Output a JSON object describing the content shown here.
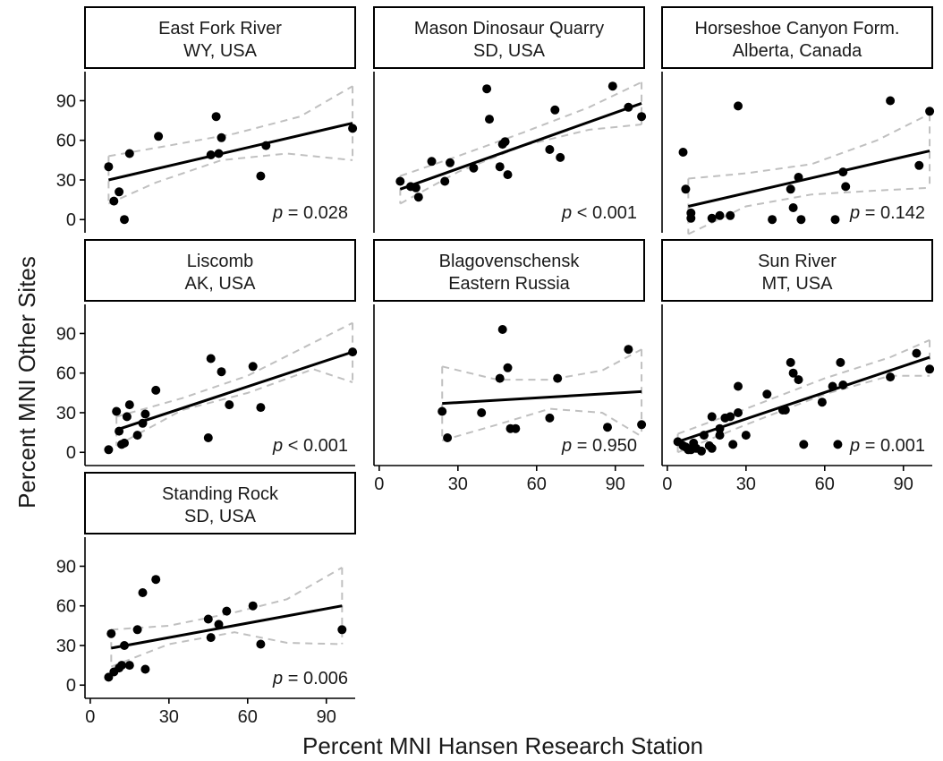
{
  "chart_data": {
    "type": "scatter",
    "xlabel": "Percent MNI Hansen Research Station",
    "ylabel": "Percent MNI Other Sites",
    "xticks": [
      0,
      30,
      60,
      90
    ],
    "yticks": [
      0,
      30,
      60,
      90
    ],
    "xlim": [
      -2,
      101
    ],
    "ylim": [
      -10,
      112
    ],
    "panels": [
      {
        "id": "east-fork",
        "title": [
          "East Fork River",
          "WY, USA"
        ],
        "p_label": "p",
        "p_op": "=",
        "p_value": "0.028",
        "points": [
          [
            7,
            40
          ],
          [
            9,
            14
          ],
          [
            11,
            21
          ],
          [
            13,
            0
          ],
          [
            15,
            50
          ],
          [
            26,
            63
          ],
          [
            46,
            49
          ],
          [
            48,
            78
          ],
          [
            49,
            50
          ],
          [
            50,
            62
          ],
          [
            65,
            33
          ],
          [
            67,
            56
          ],
          [
            100,
            69
          ]
        ],
        "fit": [
          [
            7,
            30
          ],
          [
            100,
            73
          ]
        ],
        "ci_upper": [
          [
            7,
            48
          ],
          [
            30,
            56
          ],
          [
            55,
            65
          ],
          [
            80,
            78
          ],
          [
            100,
            101
          ]
        ],
        "ci_lower": [
          [
            7,
            12
          ],
          [
            25,
            28
          ],
          [
            50,
            45
          ],
          [
            75,
            50
          ],
          [
            100,
            45
          ]
        ]
      },
      {
        "id": "mason",
        "title": [
          "Mason Dinosaur Quarry",
          "SD, USA"
        ],
        "p_label": "p",
        "p_op": "<",
        "p_value": "0.001",
        "points": [
          [
            8,
            29
          ],
          [
            12,
            25
          ],
          [
            14,
            24
          ],
          [
            15,
            17
          ],
          [
            20,
            44
          ],
          [
            25,
            29
          ],
          [
            27,
            43
          ],
          [
            36,
            39
          ],
          [
            41,
            99
          ],
          [
            42,
            76
          ],
          [
            46,
            40
          ],
          [
            47,
            57
          ],
          [
            48,
            59
          ],
          [
            49,
            34
          ],
          [
            65,
            53
          ],
          [
            67,
            83
          ],
          [
            69,
            47
          ],
          [
            89,
            101
          ],
          [
            95,
            85
          ],
          [
            100,
            78
          ]
        ],
        "fit": [
          [
            8,
            23
          ],
          [
            100,
            88
          ]
        ],
        "ci_upper": [
          [
            8,
            33
          ],
          [
            30,
            48
          ],
          [
            55,
            66
          ],
          [
            80,
            85
          ],
          [
            100,
            104
          ]
        ],
        "ci_lower": [
          [
            8,
            12
          ],
          [
            30,
            36
          ],
          [
            55,
            56
          ],
          [
            80,
            68
          ],
          [
            100,
            72
          ]
        ]
      },
      {
        "id": "horseshoe",
        "title": [
          "Horseshoe Canyon Form.",
          "Alberta, Canada"
        ],
        "p_label": "p",
        "p_op": "=",
        "p_value": "0.142",
        "points": [
          [
            6,
            51
          ],
          [
            7,
            23
          ],
          [
            9,
            1
          ],
          [
            9,
            5
          ],
          [
            17,
            1
          ],
          [
            20,
            3
          ],
          [
            24,
            3
          ],
          [
            27,
            86
          ],
          [
            40,
            0
          ],
          [
            47,
            23
          ],
          [
            48,
            9
          ],
          [
            50,
            32
          ],
          [
            51,
            0
          ],
          [
            64,
            0
          ],
          [
            67,
            36
          ],
          [
            68,
            25
          ],
          [
            85,
            90
          ],
          [
            96,
            41
          ],
          [
            100,
            82
          ]
        ],
        "fit": [
          [
            8,
            10
          ],
          [
            100,
            52
          ]
        ],
        "ci_upper": [
          [
            8,
            31
          ],
          [
            30,
            35
          ],
          [
            55,
            42
          ],
          [
            80,
            60
          ],
          [
            100,
            80
          ]
        ],
        "ci_lower": [
          [
            8,
            -11
          ],
          [
            30,
            10
          ],
          [
            55,
            19
          ],
          [
            80,
            22
          ],
          [
            100,
            24
          ]
        ]
      },
      {
        "id": "liscomb",
        "title": [
          "Liscomb",
          "AK, USA"
        ],
        "p_label": "p",
        "p_op": "<",
        "p_value": "0.001",
        "points": [
          [
            7,
            2
          ],
          [
            10,
            31
          ],
          [
            11,
            16
          ],
          [
            12,
            6
          ],
          [
            13,
            7
          ],
          [
            14,
            27
          ],
          [
            15,
            36
          ],
          [
            18,
            13
          ],
          [
            20,
            22
          ],
          [
            21,
            29
          ],
          [
            25,
            47
          ],
          [
            45,
            11
          ],
          [
            46,
            71
          ],
          [
            50,
            61
          ],
          [
            53,
            36
          ],
          [
            62,
            65
          ],
          [
            65,
            34
          ],
          [
            100,
            76
          ]
        ],
        "fit": [
          [
            10,
            17
          ],
          [
            100,
            76
          ]
        ],
        "ci_upper": [
          [
            10,
            27
          ],
          [
            35,
            41
          ],
          [
            60,
            58
          ],
          [
            85,
            83
          ],
          [
            100,
            98
          ]
        ],
        "ci_lower": [
          [
            10,
            5
          ],
          [
            35,
            32
          ],
          [
            60,
            45
          ],
          [
            85,
            63
          ],
          [
            100,
            53
          ]
        ]
      },
      {
        "id": "blagovenschensk",
        "title": [
          "Blagovenschensk",
          "Eastern Russia"
        ],
        "p_label": "p",
        "p_op": "=",
        "p_value": "0.950",
        "points": [
          [
            24,
            31
          ],
          [
            26,
            11
          ],
          [
            39,
            30
          ],
          [
            46,
            56
          ],
          [
            47,
            93
          ],
          [
            49,
            64
          ],
          [
            50,
            18
          ],
          [
            52,
            18
          ],
          [
            65,
            26
          ],
          [
            68,
            56
          ],
          [
            87,
            19
          ],
          [
            95,
            78
          ],
          [
            100,
            21
          ]
        ],
        "fit": [
          [
            24,
            37
          ],
          [
            100,
            46
          ]
        ],
        "ci_upper": [
          [
            24,
            65
          ],
          [
            45,
            55
          ],
          [
            65,
            55
          ],
          [
            85,
            62
          ],
          [
            100,
            78
          ]
        ],
        "ci_lower": [
          [
            24,
            9
          ],
          [
            45,
            21
          ],
          [
            65,
            33
          ],
          [
            85,
            30
          ],
          [
            100,
            12
          ]
        ]
      },
      {
        "id": "sun-river",
        "title": [
          "Sun River",
          "MT, USA"
        ],
        "p_label": "p",
        "p_op": "=",
        "p_value": "0.001",
        "points": [
          [
            4,
            8
          ],
          [
            6,
            5
          ],
          [
            7,
            4
          ],
          [
            8,
            2
          ],
          [
            9,
            2
          ],
          [
            10,
            7
          ],
          [
            11,
            3
          ],
          [
            13,
            1
          ],
          [
            14,
            13
          ],
          [
            16,
            5
          ],
          [
            17,
            3
          ],
          [
            17,
            27
          ],
          [
            20,
            13
          ],
          [
            20,
            18
          ],
          [
            22,
            26
          ],
          [
            24,
            27
          ],
          [
            25,
            6
          ],
          [
            27,
            50
          ],
          [
            27,
            30
          ],
          [
            30,
            13
          ],
          [
            38,
            44
          ],
          [
            44,
            32
          ],
          [
            45,
            32
          ],
          [
            47,
            68
          ],
          [
            48,
            60
          ],
          [
            50,
            55
          ],
          [
            52,
            6
          ],
          [
            59,
            38
          ],
          [
            63,
            50
          ],
          [
            65,
            6
          ],
          [
            66,
            68
          ],
          [
            67,
            51
          ],
          [
            85,
            57
          ],
          [
            95,
            75
          ],
          [
            100,
            63
          ]
        ],
        "fit": [
          [
            4,
            8
          ],
          [
            100,
            72
          ]
        ],
        "ci_upper": [
          [
            4,
            14
          ],
          [
            30,
            33
          ],
          [
            60,
            56
          ],
          [
            85,
            72
          ],
          [
            100,
            85
          ]
        ],
        "ci_lower": [
          [
            4,
            0
          ],
          [
            30,
            21
          ],
          [
            60,
            44
          ],
          [
            85,
            58
          ],
          [
            100,
            58
          ]
        ]
      },
      {
        "id": "standing-rock",
        "title": [
          "Standing Rock",
          "SD, USA"
        ],
        "p_label": "p",
        "p_op": "=",
        "p_value": "0.006",
        "points": [
          [
            7,
            6
          ],
          [
            8,
            39
          ],
          [
            9,
            10
          ],
          [
            11,
            13
          ],
          [
            12,
            15
          ],
          [
            13,
            30
          ],
          [
            15,
            15
          ],
          [
            18,
            42
          ],
          [
            20,
            70
          ],
          [
            21,
            12
          ],
          [
            25,
            80
          ],
          [
            45,
            50
          ],
          [
            46,
            36
          ],
          [
            49,
            46
          ],
          [
            52,
            56
          ],
          [
            62,
            60
          ],
          [
            65,
            31
          ],
          [
            96,
            42
          ]
        ],
        "fit": [
          [
            8,
            28
          ],
          [
            96,
            60
          ]
        ],
        "ci_upper": [
          [
            8,
            42
          ],
          [
            30,
            45
          ],
          [
            55,
            55
          ],
          [
            75,
            65
          ],
          [
            96,
            89
          ]
        ],
        "ci_lower": [
          [
            8,
            14
          ],
          [
            30,
            31
          ],
          [
            55,
            40
          ],
          [
            75,
            32
          ],
          [
            96,
            31
          ]
        ]
      }
    ]
  }
}
